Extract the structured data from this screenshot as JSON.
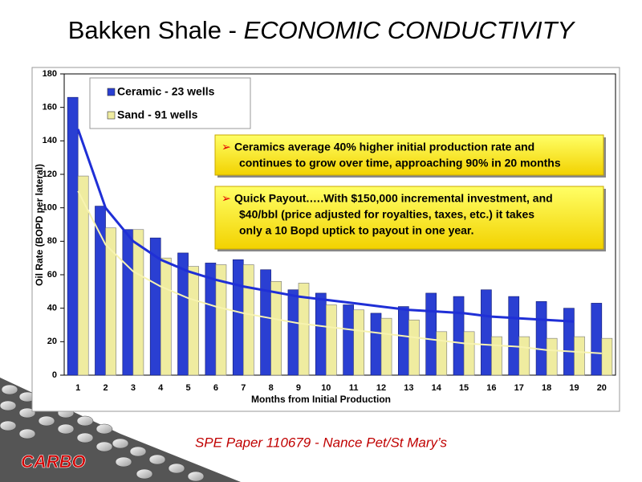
{
  "chart_data": {
    "type": "bar",
    "title": "Bakken Shale -",
    "title_emphasis": "ECONOMIC CONDUCTIVITY",
    "x_label": "Months from Initial Production",
    "y_label": "Oil Rate (BOPD per lateral)",
    "categories": [
      "1",
      "2",
      "3",
      "4",
      "5",
      "6",
      "7",
      "8",
      "9",
      "10",
      "11",
      "12",
      "13",
      "14",
      "15",
      "16",
      "17",
      "18",
      "19",
      "20"
    ],
    "series": [
      {
        "name": "Ceramic - 23 wells",
        "color": "#2a3fd2",
        "values": [
          166,
          101,
          87,
          82,
          73,
          67,
          69,
          63,
          51,
          49,
          42,
          37,
          41,
          49,
          47,
          51,
          47,
          44,
          40,
          43
        ]
      },
      {
        "name": "Sand - 91 wells",
        "color": "#efeca0",
        "values": [
          119,
          88,
          87,
          70,
          65,
          66,
          66,
          56,
          55,
          42,
          39,
          34,
          33,
          26,
          26,
          23,
          23,
          22,
          23,
          22
        ]
      }
    ],
    "trendlines": [
      {
        "color": "#1f2fd6",
        "values": [
          147,
          100,
          80,
          69,
          62,
          57,
          53,
          50,
          47,
          45,
          43,
          41,
          39,
          38,
          37,
          35,
          34,
          33,
          32,
          null
        ]
      },
      {
        "color": "#f7f3b0",
        "values": [
          110,
          78,
          62,
          53,
          46,
          41,
          37,
          34,
          31,
          29,
          27,
          25,
          23,
          21,
          19,
          18,
          17,
          15,
          14,
          13
        ]
      }
    ],
    "ylim": [
      0,
      180
    ],
    "yticks": [
      0,
      20,
      40,
      60,
      80,
      100,
      120,
      140,
      160,
      180
    ],
    "legend": "upper left",
    "annotations": [
      {
        "lines": [
          "Ceramics average 40% higher initial production rate and",
          "continues to grow over time, approaching 90% in 20 months"
        ]
      },
      {
        "lines": [
          "Quick Payout.….With $150,000 incremental investment, and",
          "$40/bbl (price adjusted for royalties, taxes, etc.) it  takes",
          "only a 10 Bopd uptick to payout in one year."
        ]
      }
    ],
    "source": "SPE Paper 110679 - Nance Pet/St Mary’s",
    "logo": "CARBO"
  }
}
